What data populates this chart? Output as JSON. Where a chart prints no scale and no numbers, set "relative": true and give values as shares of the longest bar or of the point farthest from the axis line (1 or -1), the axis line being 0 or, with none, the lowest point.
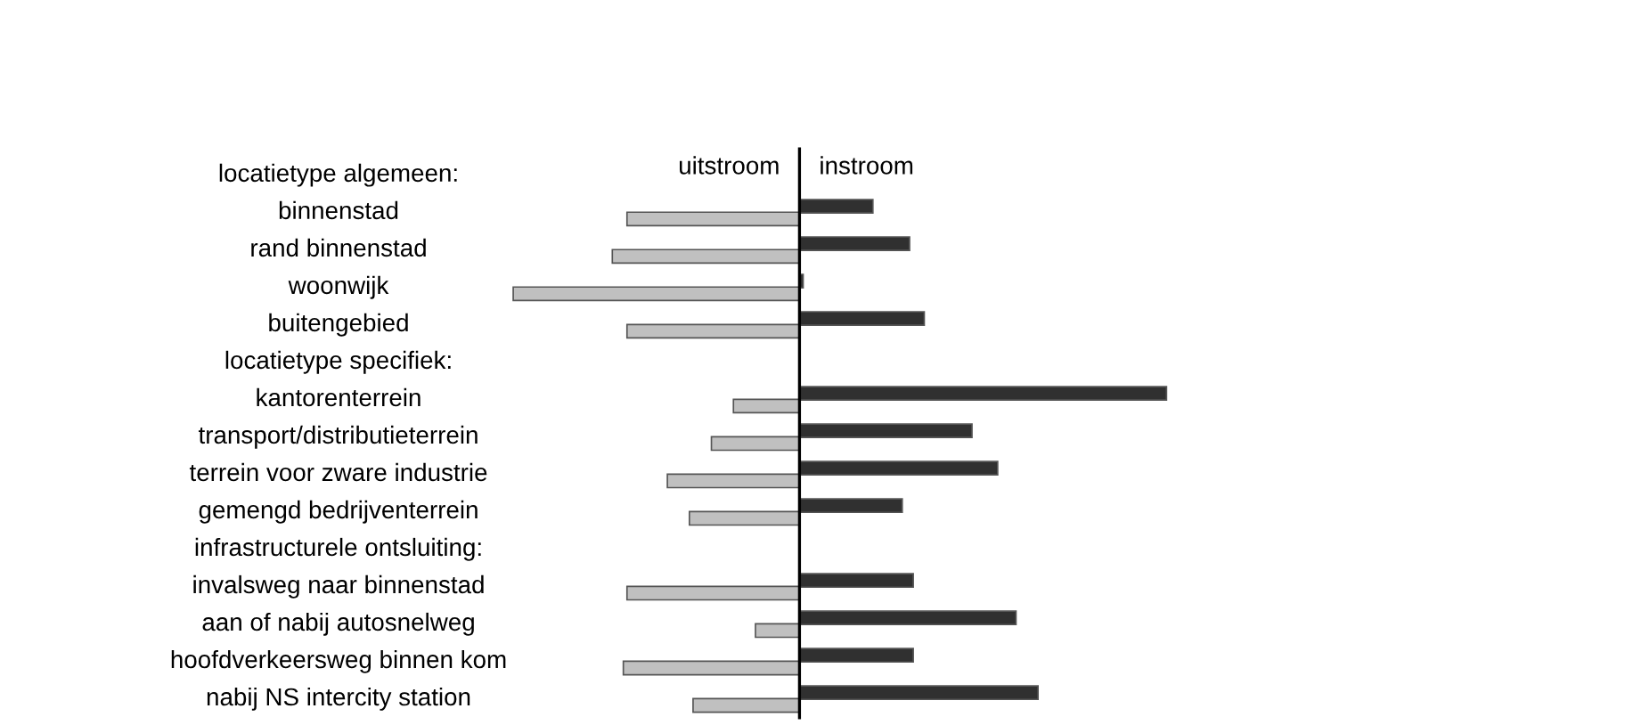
{
  "chart_data": {
    "type": "bar",
    "orientation": "horizontal",
    "relative": true,
    "legend": false,
    "annotations": [
      "locatietype algemeen:",
      "locatietype specifiek:",
      "infrastructurele ontsluiting:"
    ],
    "categories": [
      null,
      "binnenstad",
      "rand binnenstad",
      "woonwijk",
      "buitengebied",
      null,
      "kantorenterrein",
      "transport/distributieterrein",
      "terrein voor zware industrie",
      "gemengd bedrijventerrein",
      null,
      "invalsweg naar binnenstad",
      "aan of nabij autosnelweg",
      "hoofdverkeersweg binnen kom",
      "nabij NS intercity station"
    ],
    "series": [
      {
        "name": "uitstroom",
        "color": "#c0c0c0",
        "values": [
          null,
          -0.47,
          -0.51,
          -0.78,
          -0.47,
          null,
          -0.18,
          -0.24,
          -0.36,
          -0.3,
          null,
          -0.47,
          -0.12,
          -0.48,
          -0.29
        ]
      },
      {
        "name": "instroom",
        "color": "#303030",
        "values": [
          null,
          0.2,
          0.3,
          0.01,
          0.34,
          null,
          1.0,
          0.47,
          0.54,
          0.28,
          null,
          0.31,
          0.59,
          0.31,
          0.65
        ]
      }
    ]
  }
}
